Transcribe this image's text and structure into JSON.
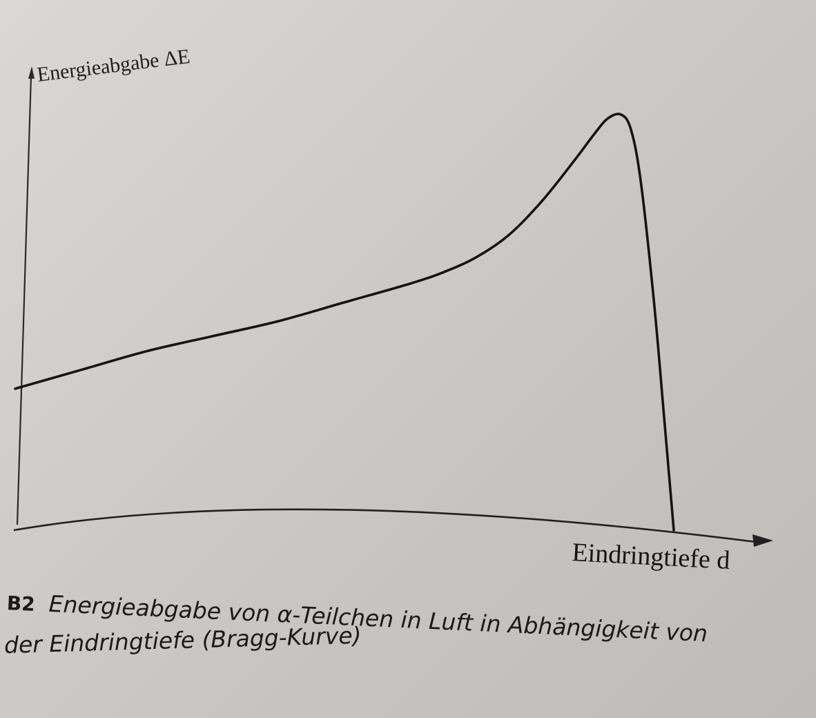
{
  "chart_data": {
    "type": "line",
    "ylabel": "Energieabgabe ΔE",
    "xlabel": "Eindringtiefe d",
    "x_ticks": [],
    "y_ticks": [],
    "grid": false,
    "series": [
      {
        "points": [
          [
            0.0,
            0.27
          ],
          [
            0.1,
            0.32
          ],
          [
            0.2,
            0.37
          ],
          [
            0.3,
            0.41
          ],
          [
            0.4,
            0.45
          ],
          [
            0.5,
            0.5
          ],
          [
            0.6,
            0.55
          ],
          [
            0.65,
            0.58
          ],
          [
            0.7,
            0.62
          ],
          [
            0.75,
            0.68
          ],
          [
            0.8,
            0.77
          ],
          [
            0.85,
            0.88
          ],
          [
            0.88,
            0.95
          ],
          [
            0.9,
            0.99
          ],
          [
            0.92,
            1.0
          ],
          [
            0.935,
            0.96
          ],
          [
            0.95,
            0.82
          ],
          [
            0.97,
            0.5
          ],
          [
            0.985,
            0.2
          ],
          [
            1.0,
            0.0
          ]
        ]
      }
    ]
  },
  "caption": {
    "number": "B2",
    "line1": "Energieabgabe von α-Teilchen in Luft in Abhängigkeit von",
    "line2": "der Eindringtiefe (Bragg-Kurve)"
  }
}
